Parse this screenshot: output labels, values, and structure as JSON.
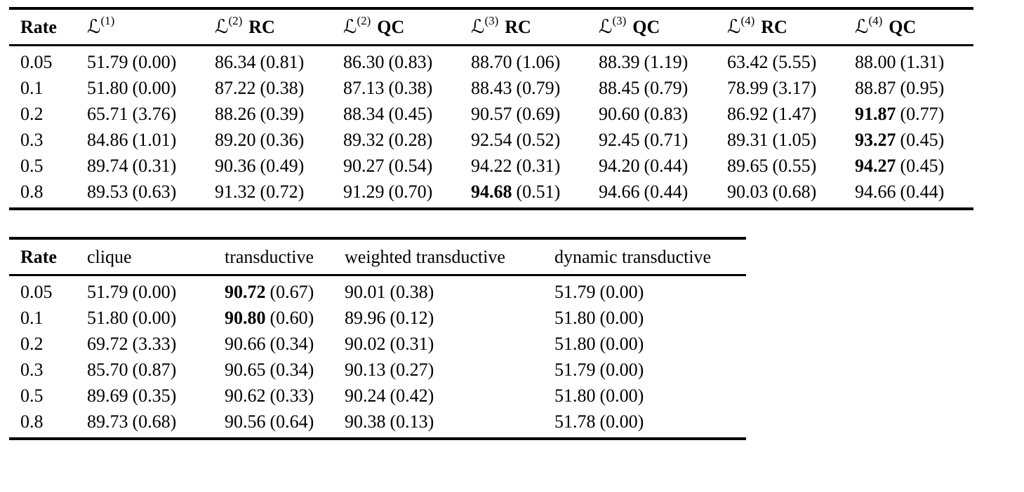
{
  "table1": {
    "header": {
      "rate": "Rate",
      "cols": [
        {
          "cal": "ℒ",
          "sup": "(1)",
          "suffix": ""
        },
        {
          "cal": "ℒ",
          "sup": "(2)",
          "suffix": "RC"
        },
        {
          "cal": "ℒ",
          "sup": "(2)",
          "suffix": "QC"
        },
        {
          "cal": "ℒ",
          "sup": "(3)",
          "suffix": "RC"
        },
        {
          "cal": "ℒ",
          "sup": "(3)",
          "suffix": "QC"
        },
        {
          "cal": "ℒ",
          "sup": "(4)",
          "suffix": "RC"
        },
        {
          "cal": "ℒ",
          "sup": "(4)",
          "suffix": "QC"
        }
      ]
    },
    "rows": [
      {
        "rate": "0.05",
        "cells": [
          {
            "v": "51.79",
            "s": "(0.00)",
            "b": false
          },
          {
            "v": "86.34",
            "s": "(0.81)",
            "b": false
          },
          {
            "v": "86.30",
            "s": "(0.83)",
            "b": false
          },
          {
            "v": "88.70",
            "s": "(1.06)",
            "b": false
          },
          {
            "v": "88.39",
            "s": "(1.19)",
            "b": false
          },
          {
            "v": "63.42",
            "s": "(5.55)",
            "b": false
          },
          {
            "v": "88.00",
            "s": "(1.31)",
            "b": false
          }
        ]
      },
      {
        "rate": "0.1",
        "cells": [
          {
            "v": "51.80",
            "s": "(0.00)",
            "b": false
          },
          {
            "v": "87.22",
            "s": "(0.38)",
            "b": false
          },
          {
            "v": "87.13",
            "s": "(0.38)",
            "b": false
          },
          {
            "v": "88.43",
            "s": "(0.79)",
            "b": false
          },
          {
            "v": "88.45",
            "s": "(0.79)",
            "b": false
          },
          {
            "v": "78.99",
            "s": "(3.17)",
            "b": false
          },
          {
            "v": "88.87",
            "s": "(0.95)",
            "b": false
          }
        ]
      },
      {
        "rate": "0.2",
        "cells": [
          {
            "v": "65.71",
            "s": "(3.76)",
            "b": false
          },
          {
            "v": "88.26",
            "s": "(0.39)",
            "b": false
          },
          {
            "v": "88.34",
            "s": "(0.45)",
            "b": false
          },
          {
            "v": "90.57",
            "s": "(0.69)",
            "b": false
          },
          {
            "v": "90.60",
            "s": "(0.83)",
            "b": false
          },
          {
            "v": "86.92",
            "s": "(1.47)",
            "b": false
          },
          {
            "v": "91.87",
            "s": "(0.77)",
            "b": true
          }
        ]
      },
      {
        "rate": "0.3",
        "cells": [
          {
            "v": "84.86",
            "s": "(1.01)",
            "b": false
          },
          {
            "v": "89.20",
            "s": "(0.36)",
            "b": false
          },
          {
            "v": "89.32",
            "s": "(0.28)",
            "b": false
          },
          {
            "v": "92.54",
            "s": "(0.52)",
            "b": false
          },
          {
            "v": "92.45",
            "s": "(0.71)",
            "b": false
          },
          {
            "v": "89.31",
            "s": "(1.05)",
            "b": false
          },
          {
            "v": "93.27",
            "s": "(0.45)",
            "b": true
          }
        ]
      },
      {
        "rate": "0.5",
        "cells": [
          {
            "v": "89.74",
            "s": "(0.31)",
            "b": false
          },
          {
            "v": "90.36",
            "s": "(0.49)",
            "b": false
          },
          {
            "v": "90.27",
            "s": "(0.54)",
            "b": false
          },
          {
            "v": "94.22",
            "s": "(0.31)",
            "b": false
          },
          {
            "v": "94.20",
            "s": "(0.44)",
            "b": false
          },
          {
            "v": "89.65",
            "s": "(0.55)",
            "b": false
          },
          {
            "v": "94.27",
            "s": "(0.45)",
            "b": true
          }
        ]
      },
      {
        "rate": "0.8",
        "cells": [
          {
            "v": "89.53",
            "s": "(0.63)",
            "b": false
          },
          {
            "v": "91.32",
            "s": "(0.72)",
            "b": false
          },
          {
            "v": "91.29",
            "s": "(0.70)",
            "b": false
          },
          {
            "v": "94.68",
            "s": "(0.51)",
            "b": true
          },
          {
            "v": "94.66",
            "s": "(0.44)",
            "b": false
          },
          {
            "v": "90.03",
            "s": "(0.68)",
            "b": false
          },
          {
            "v": "94.66",
            "s": "(0.44)",
            "b": false
          }
        ]
      }
    ]
  },
  "table2": {
    "header": {
      "rate": "Rate",
      "cols": [
        {
          "label": "clique"
        },
        {
          "label": "transductive"
        },
        {
          "label": "weighted transductive"
        },
        {
          "label": "dynamic transductive"
        }
      ]
    },
    "rows": [
      {
        "rate": "0.05",
        "cells": [
          {
            "v": "51.79",
            "s": "(0.00)",
            "b": false
          },
          {
            "v": "90.72",
            "s": "(0.67)",
            "b": true
          },
          {
            "v": "90.01",
            "s": "(0.38)",
            "b": false
          },
          {
            "v": "51.79",
            "s": "(0.00)",
            "b": false
          }
        ]
      },
      {
        "rate": "0.1",
        "cells": [
          {
            "v": "51.80",
            "s": "(0.00)",
            "b": false
          },
          {
            "v": "90.80",
            "s": "(0.60)",
            "b": true
          },
          {
            "v": "89.96",
            "s": "(0.12)",
            "b": false
          },
          {
            "v": "51.80",
            "s": "(0.00)",
            "b": false
          }
        ]
      },
      {
        "rate": "0.2",
        "cells": [
          {
            "v": "69.72",
            "s": "(3.33)",
            "b": false
          },
          {
            "v": "90.66",
            "s": "(0.34)",
            "b": false
          },
          {
            "v": "90.02",
            "s": "(0.31)",
            "b": false
          },
          {
            "v": "51.80",
            "s": "(0.00)",
            "b": false
          }
        ]
      },
      {
        "rate": "0.3",
        "cells": [
          {
            "v": "85.70",
            "s": "(0.87)",
            "b": false
          },
          {
            "v": "90.65",
            "s": "(0.34)",
            "b": false
          },
          {
            "v": "90.13",
            "s": "(0.27)",
            "b": false
          },
          {
            "v": "51.79",
            "s": "(0.00)",
            "b": false
          }
        ]
      },
      {
        "rate": "0.5",
        "cells": [
          {
            "v": "89.69",
            "s": "(0.35)",
            "b": false
          },
          {
            "v": "90.62",
            "s": "(0.33)",
            "b": false
          },
          {
            "v": "90.24",
            "s": "(0.42)",
            "b": false
          },
          {
            "v": "51.80",
            "s": "(0.00)",
            "b": false
          }
        ]
      },
      {
        "rate": "0.8",
        "cells": [
          {
            "v": "89.73",
            "s": "(0.68)",
            "b": false
          },
          {
            "v": "90.56",
            "s": "(0.64)",
            "b": false
          },
          {
            "v": "90.38",
            "s": "(0.13)",
            "b": false
          },
          {
            "v": "51.78",
            "s": "(0.00)",
            "b": false
          }
        ]
      }
    ]
  }
}
